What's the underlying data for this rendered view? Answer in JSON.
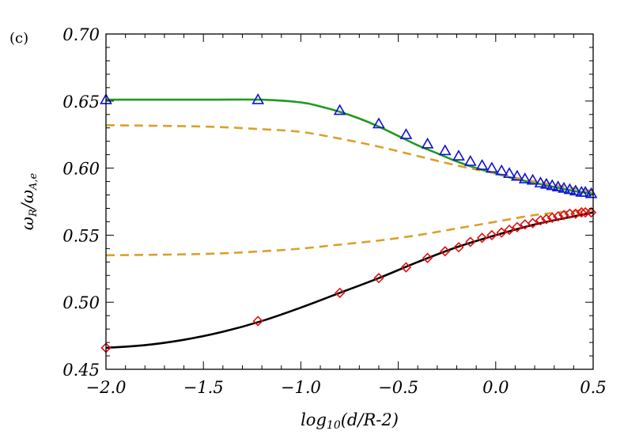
{
  "chart_data": {
    "type": "line",
    "panel_label": "(c)",
    "xlabel": "log10(d/R-2)",
    "xlabel_parts": {
      "base": "log",
      "sub": "10",
      "rest": "(d/R-2)"
    },
    "ylabel": "ωR/ωA,e",
    "ylabel_parts": {
      "num": "ω",
      "num_sub": "R",
      "den": "ω",
      "den_sub": "A,e"
    },
    "xlim": [
      -2.0,
      0.5
    ],
    "ylim": [
      0.45,
      0.7
    ],
    "x_ticks": [
      -2.0,
      -1.5,
      -1.0,
      -0.5,
      0.0,
      0.5
    ],
    "x_tick_labels": [
      "−2.0",
      "−1.5",
      "−1.0",
      "−0.5",
      "0.0",
      "0.5"
    ],
    "y_ticks": [
      0.45,
      0.5,
      0.55,
      0.6,
      0.65,
      0.7
    ],
    "y_tick_labels": [
      "0.45",
      "0.50",
      "0.55",
      "0.60",
      "0.65",
      "0.70"
    ],
    "grid": false,
    "series": [
      {
        "style": "solid",
        "color": "#1f9a1f",
        "x": [
          -2.0,
          -1.5,
          -1.2,
          -1.0,
          -0.9,
          -0.8,
          -0.7,
          -0.6,
          -0.5,
          -0.4,
          -0.3,
          -0.2,
          -0.1,
          0.0,
          0.1,
          0.2,
          0.3,
          0.4,
          0.5
        ],
        "y": [
          0.651,
          0.651,
          0.651,
          0.649,
          0.646,
          0.642,
          0.637,
          0.631,
          0.624,
          0.617,
          0.611,
          0.605,
          0.6,
          0.596,
          0.592,
          0.589,
          0.586,
          0.583,
          0.581
        ]
      },
      {
        "style": "dashed",
        "color": "#dba02a",
        "x": [
          -2.0,
          -1.5,
          -1.2,
          -1.0,
          -0.8,
          -0.6,
          -0.4,
          -0.2,
          0.0,
          0.2,
          0.4,
          0.5
        ],
        "y": [
          0.632,
          0.631,
          0.629,
          0.627,
          0.622,
          0.616,
          0.609,
          0.602,
          0.596,
          0.59,
          0.585,
          0.583
        ]
      },
      {
        "style": "dashed",
        "color": "#dba02a",
        "x": [
          -2.0,
          -1.5,
          -1.2,
          -1.0,
          -0.8,
          -0.6,
          -0.4,
          -0.2,
          0.0,
          0.2,
          0.4,
          0.5
        ],
        "y": [
          0.535,
          0.536,
          0.538,
          0.54,
          0.543,
          0.546,
          0.55,
          0.555,
          0.56,
          0.565,
          0.568,
          0.569
        ]
      },
      {
        "style": "solid",
        "color": "#000000",
        "x": [
          -2.0,
          -1.8,
          -1.6,
          -1.4,
          -1.2,
          -1.0,
          -0.8,
          -0.6,
          -0.4,
          -0.2,
          0.0,
          0.2,
          0.4,
          0.5
        ],
        "y": [
          0.466,
          0.468,
          0.472,
          0.478,
          0.486,
          0.496,
          0.507,
          0.518,
          0.53,
          0.541,
          0.55,
          0.558,
          0.564,
          0.567
        ]
      },
      {
        "style": "marker",
        "marker": "triangle",
        "color": "#1010d8",
        "x": [
          -2.0,
          -1.22,
          -0.8,
          -0.6,
          -0.46,
          -0.35,
          -0.26,
          -0.19,
          -0.13,
          -0.07,
          -0.02,
          0.03,
          0.07,
          0.11,
          0.15,
          0.19,
          0.23,
          0.26,
          0.29,
          0.32,
          0.35,
          0.38,
          0.41,
          0.44,
          0.46,
          0.49
        ],
        "y": [
          0.651,
          0.651,
          0.643,
          0.633,
          0.625,
          0.618,
          0.613,
          0.609,
          0.605,
          0.602,
          0.6,
          0.598,
          0.596,
          0.594,
          0.592,
          0.591,
          0.589,
          0.588,
          0.587,
          0.586,
          0.585,
          0.584,
          0.583,
          0.582,
          0.582,
          0.581
        ]
      },
      {
        "style": "marker",
        "marker": "diamond",
        "color": "#e01010",
        "x": [
          -2.0,
          -1.22,
          -0.8,
          -0.6,
          -0.46,
          -0.35,
          -0.26,
          -0.19,
          -0.13,
          -0.07,
          -0.02,
          0.03,
          0.07,
          0.11,
          0.15,
          0.19,
          0.23,
          0.26,
          0.29,
          0.32,
          0.35,
          0.38,
          0.41,
          0.44,
          0.46,
          0.49
        ],
        "y": [
          0.466,
          0.486,
          0.507,
          0.518,
          0.526,
          0.533,
          0.538,
          0.541,
          0.545,
          0.548,
          0.55,
          0.552,
          0.554,
          0.556,
          0.558,
          0.559,
          0.561,
          0.562,
          0.563,
          0.564,
          0.565,
          0.566,
          0.566,
          0.567,
          0.567,
          0.567
        ]
      }
    ]
  }
}
